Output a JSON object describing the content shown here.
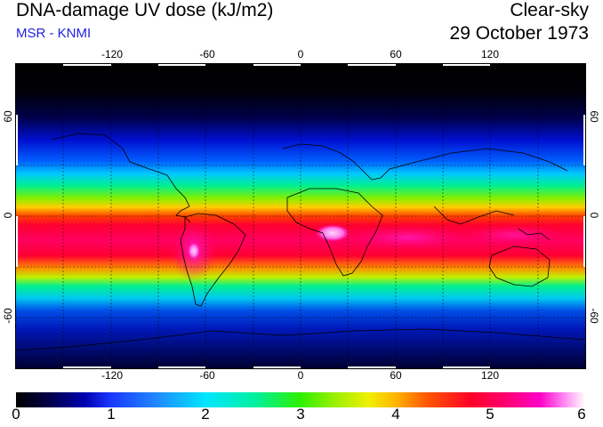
{
  "header": {
    "title": "DNA-damage UV dose (kJ/m2)",
    "subtitle": "MSR - KNMI",
    "product": "Clear-sky",
    "date": "29 October 1973"
  },
  "map": {
    "projection": "equirectangular",
    "longitude_ticks": [
      "-120",
      "-60",
      "0",
      "60",
      "120"
    ],
    "latitude_ticks": [
      "60",
      "0",
      "-60"
    ],
    "colors": {
      "polar_dark": "#000010",
      "low": "#0b2bd8",
      "mid": "#00e87a",
      "high": "#ff0038",
      "peak": "#ff7ef0",
      "coastline": "#000000"
    }
  },
  "colorbar": {
    "labels": [
      "0",
      "1",
      "2",
      "3",
      "4",
      "5",
      "6"
    ]
  }
}
